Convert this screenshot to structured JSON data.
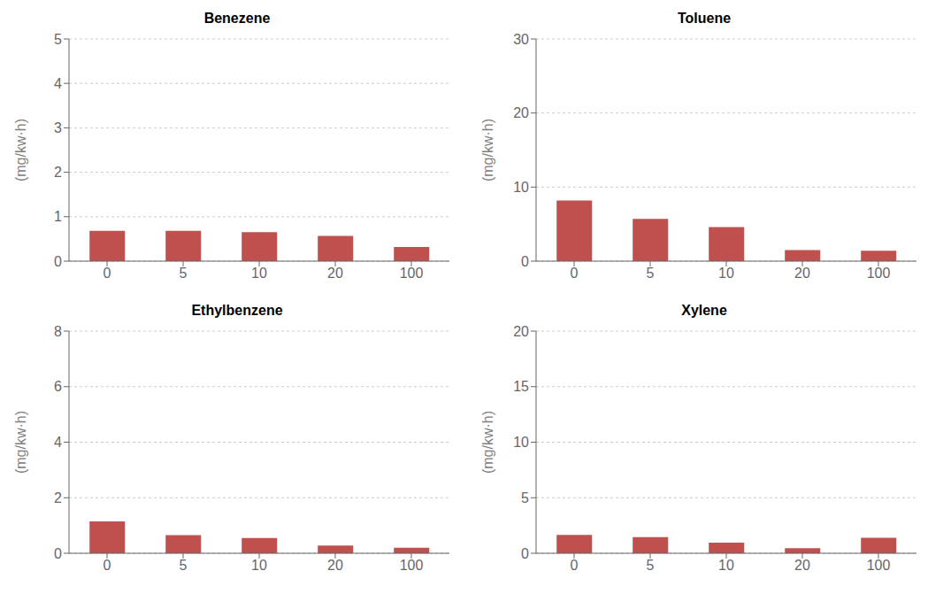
{
  "chart_data": [
    {
      "type": "bar",
      "title": "Benezene",
      "categories": [
        "0",
        "5",
        "10",
        "20",
        "100"
      ],
      "values": [
        0.68,
        0.68,
        0.65,
        0.57,
        0.32
      ],
      "ylim": [
        0,
        5
      ],
      "yticks": [
        0,
        1,
        2,
        3,
        4,
        5
      ],
      "ylabel": "(mg/kw·h)",
      "color": "#c0504d",
      "grid": true
    },
    {
      "type": "bar",
      "title": "Toluene",
      "categories": [
        "0",
        "5",
        "10",
        "20",
        "100"
      ],
      "values": [
        8.2,
        5.7,
        4.6,
        1.5,
        1.4
      ],
      "ylim": [
        0,
        30
      ],
      "yticks": [
        0,
        10,
        20,
        30
      ],
      "ylabel": "(mg/kw·h)",
      "color": "#c0504d",
      "grid": true
    },
    {
      "type": "bar",
      "title": "Ethylbenzene",
      "categories": [
        "0",
        "5",
        "10",
        "20",
        "100"
      ],
      "values": [
        1.15,
        0.65,
        0.55,
        0.28,
        0.2
      ],
      "ylim": [
        0,
        8
      ],
      "yticks": [
        0,
        2,
        4,
        6,
        8
      ],
      "ylabel": "(mg/kw·h)",
      "color": "#c0504d",
      "grid": true
    },
    {
      "type": "bar",
      "title": "Xylene",
      "categories": [
        "0",
        "5",
        "10",
        "20",
        "100"
      ],
      "values": [
        1.65,
        1.45,
        0.95,
        0.45,
        1.4
      ],
      "ylim": [
        0,
        20
      ],
      "yticks": [
        0,
        5,
        10,
        15,
        20
      ],
      "ylabel": "(mg/kw·h)",
      "color": "#c0504d",
      "grid": true
    }
  ]
}
